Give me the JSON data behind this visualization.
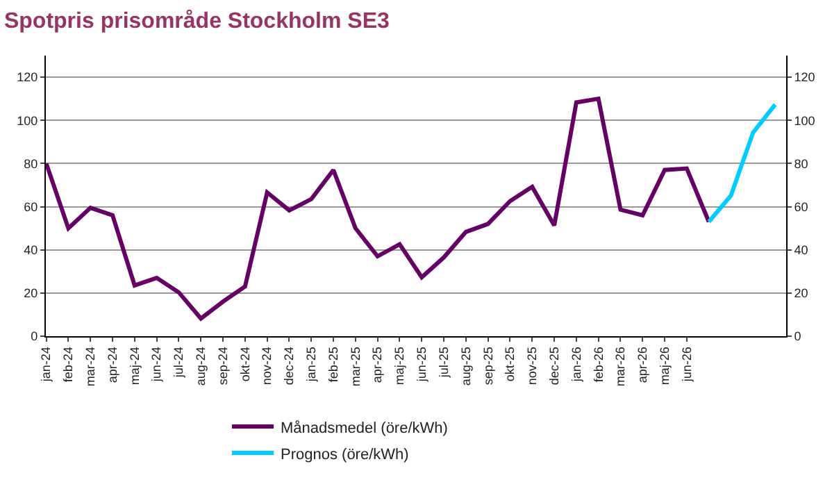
{
  "chart_data": {
    "type": "line",
    "title": "Spotpris prisområde Stockholm SE3",
    "categories": [
      "jan-24",
      "feb-24",
      "mar-24",
      "apr-24",
      "maj-24",
      "jun-24",
      "jul-24",
      "aug-24",
      "sep-24",
      "okt-24",
      "nov-24",
      "dec-24",
      "jan-25",
      "feb-25",
      "mar-25",
      "apr-25",
      "maj-25",
      "jun-25",
      "jul-25",
      "aug-25",
      "sep-25",
      "okt-25",
      "nov-25",
      "dec-25",
      "jan-26",
      "feb-26",
      "mar-26",
      "apr-26",
      "maj-26",
      "jun-26",
      null,
      null,
      null,
      null
    ],
    "series": [
      {
        "name": "Månadsmedel (öre/kWh)",
        "color": "#660066",
        "values": [
          80,
          50,
          59.5,
          56,
          23.5,
          27,
          20.3,
          8.2,
          16,
          23,
          66.6,
          58.3,
          63.5,
          77,
          50,
          37,
          42.6,
          27.3,
          36.5,
          48.3,
          52,
          62.6,
          69.2,
          51.3,
          108.3,
          110,
          58.6,
          56,
          77,
          77.7,
          53,
          null,
          null,
          null
        ]
      },
      {
        "name": "Prognos (öre/kWh)",
        "color": "#00ccff",
        "values": [
          null,
          null,
          null,
          null,
          null,
          null,
          null,
          null,
          null,
          null,
          null,
          null,
          null,
          null,
          null,
          null,
          null,
          null,
          null,
          null,
          null,
          null,
          null,
          null,
          null,
          null,
          null,
          null,
          null,
          null,
          53,
          65.2,
          94.3,
          107.3
        ]
      }
    ],
    "ylim": [
      0,
      130
    ],
    "yticks": [
      0,
      20,
      40,
      60,
      80,
      100,
      120
    ],
    "y2lim": [
      0,
      130
    ],
    "y2ticks": [
      0,
      20,
      40,
      60,
      80,
      100,
      120
    ],
    "grid": "y",
    "legend": "bottom",
    "marker": "none",
    "line_style": "solid"
  }
}
